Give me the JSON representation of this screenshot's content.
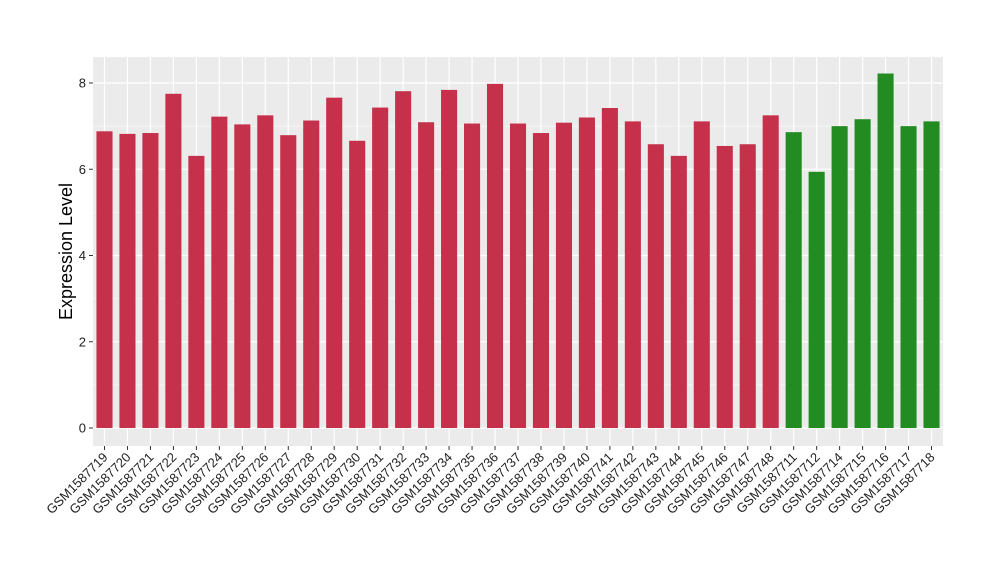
{
  "chart_data": {
    "type": "bar",
    "title": "",
    "xlabel": "",
    "ylabel": "Expression Level",
    "ylim": [
      0,
      8.6
    ],
    "yticks": [
      0,
      2,
      4,
      6,
      8
    ],
    "grid": true,
    "legend": "none",
    "background": "#ebebeb",
    "gridColor": "#ffffff",
    "categories": [
      "GSM1587719",
      "GSM1587720",
      "GSM1587721",
      "GSM1587722",
      "GSM1587723",
      "GSM1587724",
      "GSM1587725",
      "GSM1587726",
      "GSM1587727",
      "GSM1587728",
      "GSM1587729",
      "GSM1587730",
      "GSM1587731",
      "GSM1587732",
      "GSM1587733",
      "GSM1587734",
      "GSM1587735",
      "GSM1587736",
      "GSM1587737",
      "GSM1587738",
      "GSM1587739",
      "GSM1587740",
      "GSM1587741",
      "GSM1587742",
      "GSM1587743",
      "GSM1587744",
      "GSM1587745",
      "GSM1587746",
      "GSM1587747",
      "GSM1587748",
      "GSM1587711",
      "GSM1587712",
      "GSM1587714",
      "GSM1587715",
      "GSM1587716",
      "GSM1587717",
      "GSM1587718"
    ],
    "values": [
      6.88,
      6.82,
      6.84,
      7.75,
      6.31,
      7.22,
      7.04,
      7.25,
      6.79,
      7.13,
      7.66,
      6.66,
      7.43,
      7.81,
      7.09,
      7.84,
      7.06,
      7.98,
      7.06,
      6.84,
      7.08,
      7.2,
      7.42,
      7.11,
      6.58,
      6.31,
      7.11,
      6.54,
      6.58,
      7.25,
      6.86,
      5.94,
      7.0,
      7.16,
      8.22,
      7.0,
      7.11
    ],
    "colors": [
      "#c5314b",
      "#c5314b",
      "#c5314b",
      "#c5314b",
      "#c5314b",
      "#c5314b",
      "#c5314b",
      "#c5314b",
      "#c5314b",
      "#c5314b",
      "#c5314b",
      "#c5314b",
      "#c5314b",
      "#c5314b",
      "#c5314b",
      "#c5314b",
      "#c5314b",
      "#c5314b",
      "#c5314b",
      "#c5314b",
      "#c5314b",
      "#c5314b",
      "#c5314b",
      "#c5314b",
      "#c5314b",
      "#c5314b",
      "#c5314b",
      "#c5314b",
      "#c5314b",
      "#c5314b",
      "#228b22",
      "#228b22",
      "#228b22",
      "#228b22",
      "#228b22",
      "#228b22",
      "#228b22"
    ]
  }
}
